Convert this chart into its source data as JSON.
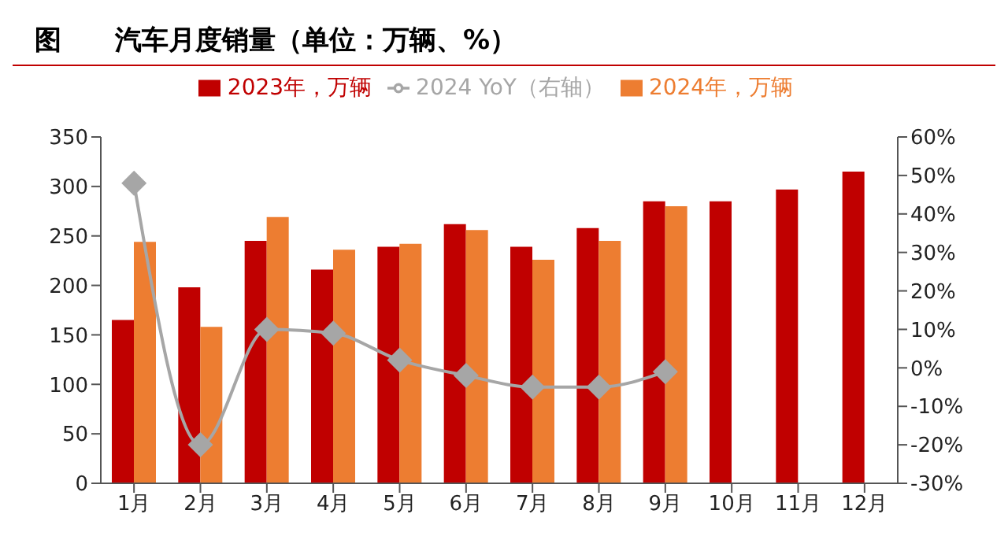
{
  "chart_data": {
    "type": "bar",
    "title": "图　　汽车月度销量（单位：万辆、%）",
    "categories": [
      "1月",
      "2月",
      "3月",
      "4月",
      "5月",
      "6月",
      "7月",
      "8月",
      "9月",
      "10月",
      "11月",
      "12月"
    ],
    "series": [
      {
        "name": "2023年，万辆",
        "color": "#c00000",
        "values": [
          165,
          198,
          245,
          216,
          239,
          262,
          239,
          258,
          285,
          285,
          297,
          315
        ]
      },
      {
        "name": "2024年，万辆",
        "color": "#ed7d31",
        "values": [
          244,
          158,
          269,
          236,
          242,
          256,
          226,
          245,
          280,
          null,
          null,
          null
        ]
      },
      {
        "name": "2024 YoY（右轴）",
        "type": "line",
        "axis": "y2",
        "color": "#a6a6a6",
        "marker": "diamond",
        "values": [
          48,
          -20,
          10,
          9,
          2,
          -2,
          -5,
          -5,
          -1,
          null,
          null,
          null
        ]
      }
    ],
    "ylim": [
      0,
      350
    ],
    "yticks": [
      0,
      50,
      100,
      150,
      200,
      250,
      300,
      350
    ],
    "y2lim": [
      -30,
      60
    ],
    "y2ticks": [
      {
        "value": -30,
        "label": "-30%"
      },
      {
        "value": -20,
        "label": "-20%"
      },
      {
        "value": -10,
        "label": "-10%"
      },
      {
        "value": 0,
        "label": "0%"
      },
      {
        "value": 10,
        "label": "10%"
      },
      {
        "value": 20,
        "label": "20%"
      },
      {
        "value": 30,
        "label": "30%"
      },
      {
        "value": 40,
        "label": "40%"
      },
      {
        "value": 50,
        "label": "50%"
      },
      {
        "value": 60,
        "label": "60%"
      }
    ],
    "grid": false,
    "legend": "top"
  }
}
